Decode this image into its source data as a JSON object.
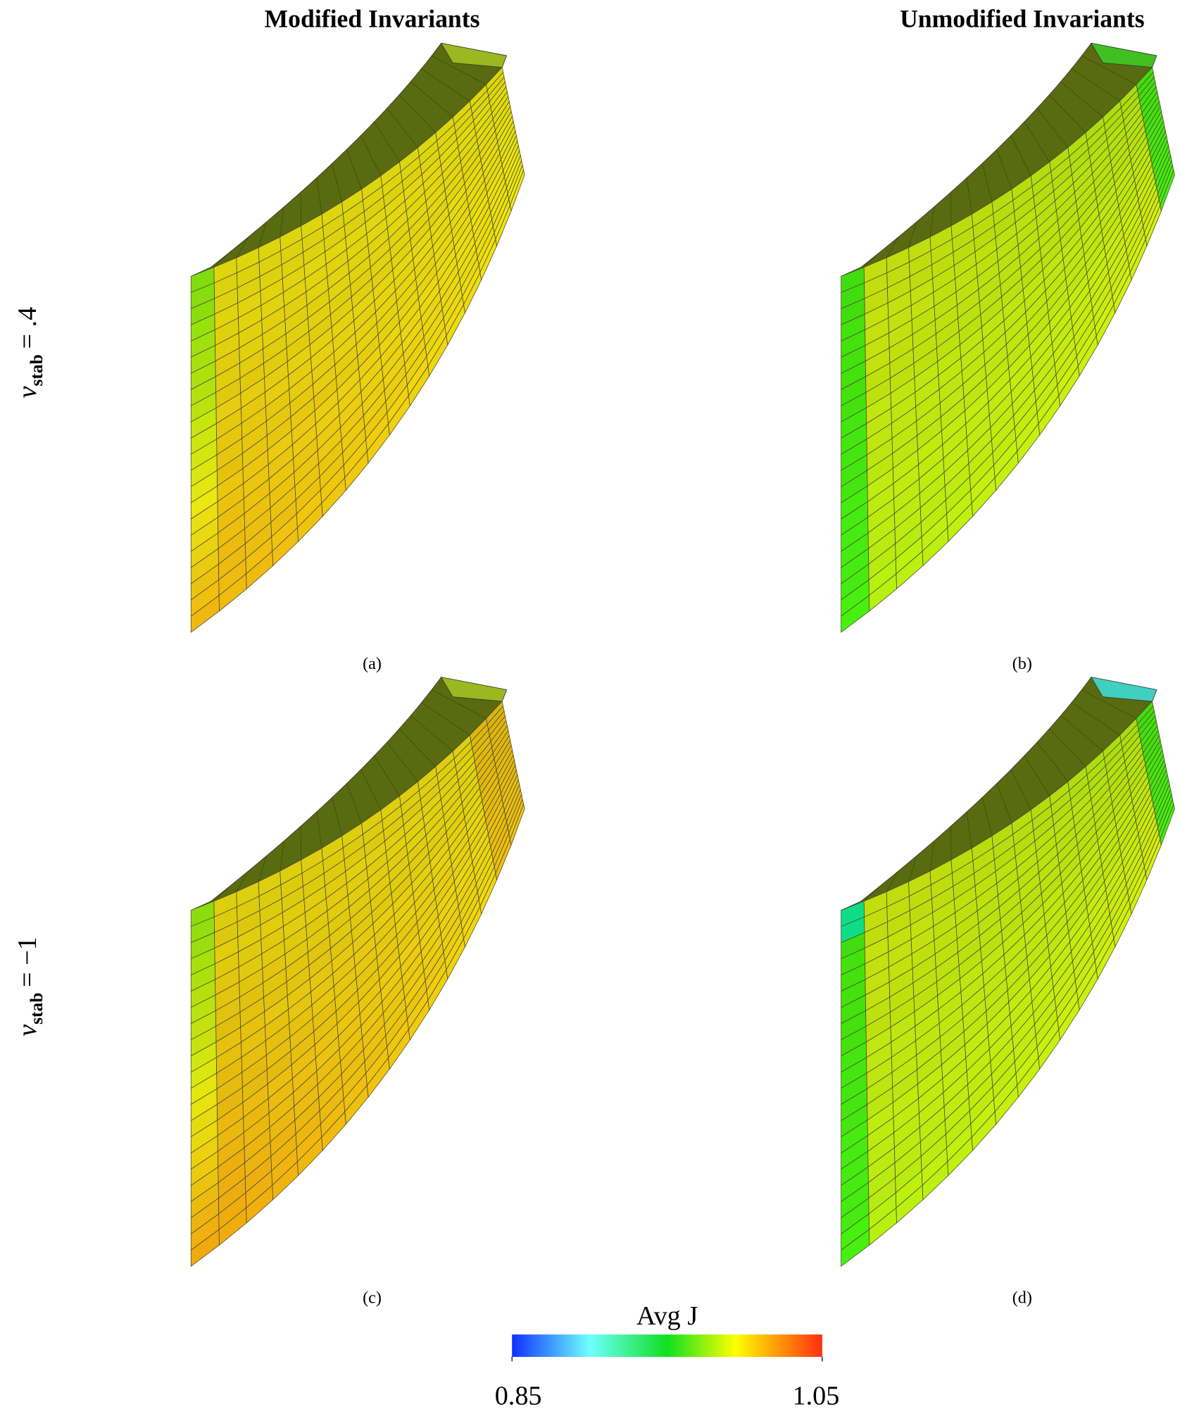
{
  "column_titles": [
    "Modified Invariants",
    "Unmodified Invariants"
  ],
  "row_labels": [
    {
      "symbol": "ν",
      "subscript": "stab",
      "value": "= .4"
    },
    {
      "symbol": "ν",
      "subscript": "stab",
      "value": "= −1"
    }
  ],
  "captions": [
    "(a)",
    "(b)",
    "(c)",
    "(d)"
  ],
  "colorbar": {
    "label": "Avg J",
    "ticks": [
      0.85,
      1.05
    ],
    "range": [
      0.85,
      1.05
    ]
  }
}
